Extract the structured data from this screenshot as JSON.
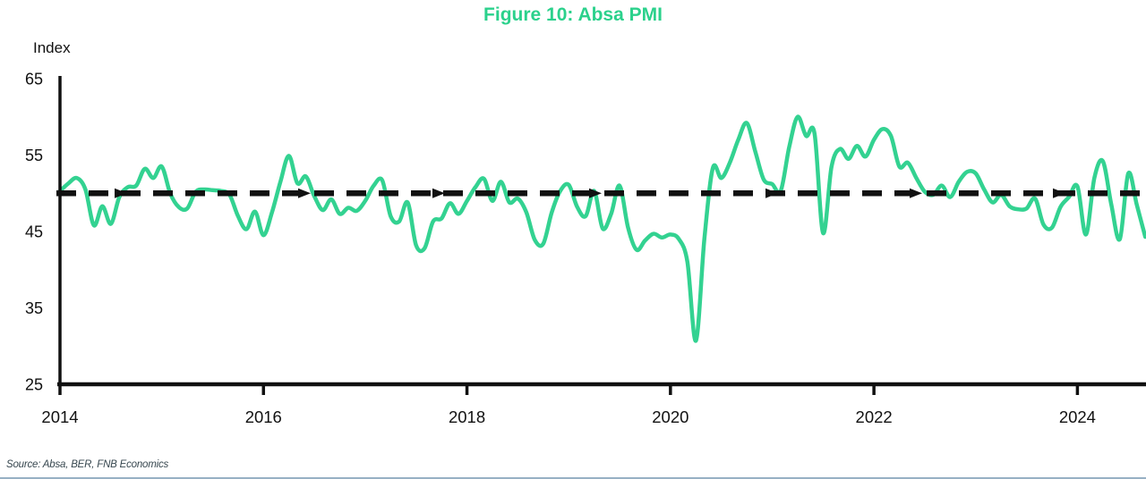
{
  "title": "Figure 10: Absa PMI",
  "source": "Source: Absa, BER, FNB Economics",
  "axis": {
    "y_label": "Index",
    "y_ticks": [
      65,
      55,
      45,
      35,
      25
    ],
    "x_ticks": [
      "2014",
      "2016",
      "2018",
      "2020",
      "2022",
      "2024"
    ]
  },
  "colors": {
    "line": "#33d291",
    "title": "#2bd18c",
    "reference": "#111111",
    "axis": "#111111",
    "tick_text": "#111111",
    "source_text": "#37474f",
    "footer_rule": "#7d9cb5"
  },
  "chart_data": {
    "type": "line",
    "title": "Figure 10: Absa PMI",
    "xlabel": "",
    "ylabel": "Index",
    "ylim": [
      25,
      65
    ],
    "x_start": "2014-01",
    "frequency": "monthly",
    "x_tick_labels": [
      "2014",
      "2016",
      "2018",
      "2020",
      "2022",
      "2024"
    ],
    "grid": false,
    "legend": "none",
    "reference_line": {
      "value": 50,
      "style": "dashed-with-arrows",
      "color": "#111111"
    },
    "series": [
      {
        "name": "Absa PMI",
        "color": "#33d291",
        "values": [
          50.3,
          51.3,
          52.0,
          50.5,
          45.8,
          48.3,
          46.0,
          49.5,
          50.8,
          51.0,
          53.2,
          52.0,
          53.5,
          50.0,
          48.2,
          48.0,
          50.2,
          50.5,
          50.4,
          50.3,
          49.8,
          47.0,
          45.3,
          47.6,
          44.5,
          47.5,
          51.5,
          54.9,
          51.3,
          52.2,
          49.6,
          47.8,
          49.2,
          47.3,
          48.1,
          47.7,
          49.0,
          51.0,
          51.7,
          47.0,
          46.3,
          48.8,
          43.2,
          42.8,
          46.3,
          46.7,
          48.7,
          47.3,
          49.0,
          50.8,
          51.9,
          49.0,
          51.5,
          48.8,
          49.3,
          47.5,
          43.9,
          43.4,
          47.5,
          50.3,
          51.1,
          48.2,
          47.0,
          50.3,
          45.4,
          47.3,
          51.0,
          45.5,
          42.6,
          43.8,
          44.7,
          44.2,
          44.6,
          44.0,
          41.0,
          30.7,
          44.0,
          53.3,
          52.0,
          54.0,
          57.0,
          59.2,
          55.5,
          51.8,
          51.2,
          50.3,
          56.0,
          60.0,
          57.5,
          57.8,
          44.8,
          53.5,
          55.8,
          54.5,
          56.2,
          54.8,
          57.0,
          58.4,
          57.5,
          53.5,
          54.0,
          52.0,
          50.2,
          49.8,
          51.0,
          49.5,
          51.5,
          52.8,
          52.6,
          50.5,
          48.8,
          49.8,
          48.3,
          47.9,
          48.0,
          49.3,
          45.9,
          45.5,
          48.2,
          49.5,
          50.9,
          44.6,
          52.0,
          54.2,
          48.5,
          44.0,
          52.6,
          48.5,
          44.3
        ]
      }
    ]
  }
}
